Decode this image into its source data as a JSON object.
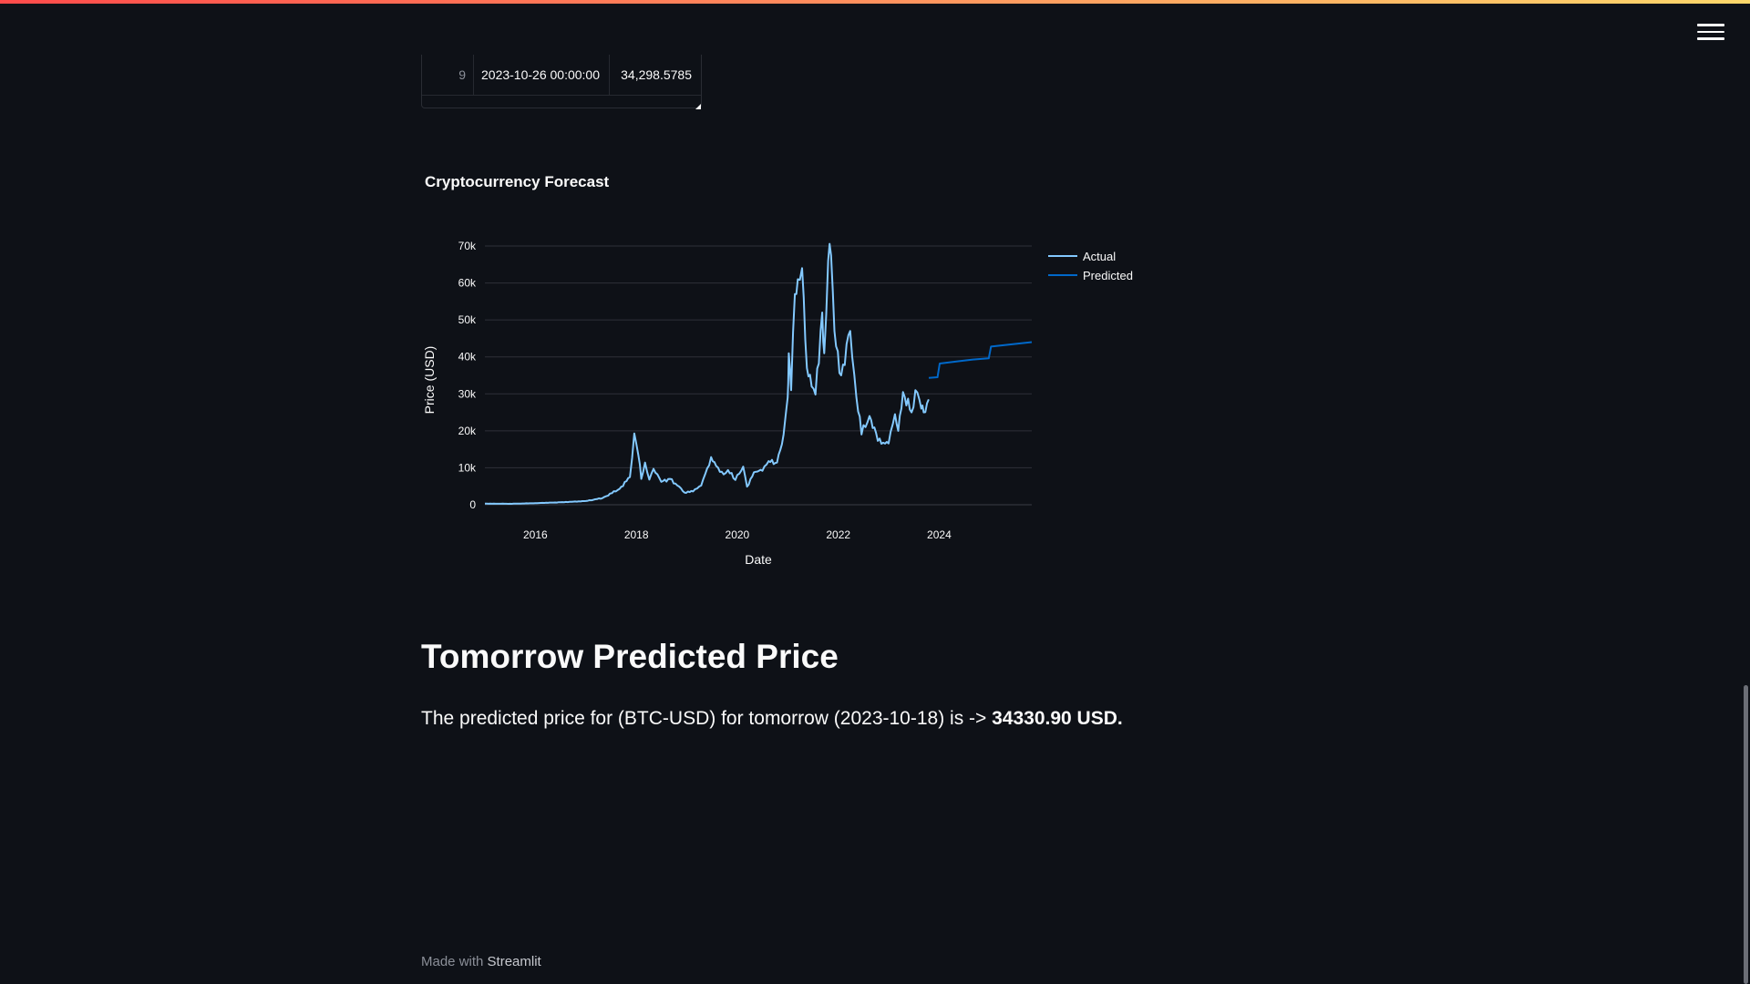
{
  "header": {
    "menu_icon": "hamburger-menu-icon"
  },
  "dataframe": {
    "visible_row": {
      "index": "9",
      "date": "2023-10-26 00:00:00",
      "value": "34,298.5785"
    }
  },
  "chart_title": "Cryptocurrency Forecast",
  "chart_data": {
    "type": "line",
    "xlabel": "Date",
    "ylabel": "Price (USD)",
    "x_ticks": [
      "2016",
      "2018",
      "2020",
      "2022",
      "2024"
    ],
    "y_ticks": [
      "0",
      "10k",
      "20k",
      "30k",
      "40k",
      "50k",
      "60k",
      "70k"
    ],
    "ylim": [
      0,
      70000
    ],
    "xlim": [
      "2015-01-01",
      "2025-11-01"
    ],
    "grid": true,
    "legend_position": "top-right",
    "series": [
      {
        "name": "Actual",
        "color": "#83c9ff",
        "points": [
          [
            "2015-01-01",
            300
          ],
          [
            "2015-07-01",
            260
          ],
          [
            "2016-01-01",
            430
          ],
          [
            "2016-07-01",
            660
          ],
          [
            "2017-01-01",
            1000
          ],
          [
            "2017-05-01",
            1800
          ],
          [
            "2017-09-01",
            4300
          ],
          [
            "2017-11-15",
            7500
          ],
          [
            "2017-12-17",
            19300
          ],
          [
            "2018-01-15",
            13500
          ],
          [
            "2018-02-06",
            7000
          ],
          [
            "2018-03-05",
            11400
          ],
          [
            "2018-04-05",
            6800
          ],
          [
            "2018-05-05",
            9700
          ],
          [
            "2018-06-30",
            6200
          ],
          [
            "2018-09-01",
            7000
          ],
          [
            "2018-11-20",
            4400
          ],
          [
            "2018-12-15",
            3300
          ],
          [
            "2019-02-15",
            3600
          ],
          [
            "2019-04-15",
            5200
          ],
          [
            "2019-06-26",
            12900
          ],
          [
            "2019-08-01",
            10500
          ],
          [
            "2019-09-25",
            8200
          ],
          [
            "2019-10-26",
            9400
          ],
          [
            "2019-12-18",
            6700
          ],
          [
            "2020-02-13",
            10300
          ],
          [
            "2020-03-12",
            4900
          ],
          [
            "2020-05-01",
            8800
          ],
          [
            "2020-07-01",
            9200
          ],
          [
            "2020-08-15",
            11800
          ],
          [
            "2020-10-15",
            11400
          ],
          [
            "2020-12-01",
            19000
          ],
          [
            "2020-12-31",
            29000
          ],
          [
            "2021-01-08",
            41000
          ],
          [
            "2021-01-25",
            31000
          ],
          [
            "2021-02-21",
            57000
          ],
          [
            "2021-03-14",
            61000
          ],
          [
            "2021-04-14",
            64000
          ],
          [
            "2021-05-19",
            37000
          ],
          [
            "2021-06-22",
            32000
          ],
          [
            "2021-07-20",
            29800
          ],
          [
            "2021-09-07",
            52000
          ],
          [
            "2021-09-21",
            41000
          ],
          [
            "2021-10-20",
            66000
          ],
          [
            "2021-11-10",
            67500
          ],
          [
            "2021-12-04",
            47000
          ],
          [
            "2022-01-22",
            35000
          ],
          [
            "2022-03-28",
            47000
          ],
          [
            "2022-05-12",
            29000
          ],
          [
            "2022-06-18",
            19000
          ],
          [
            "2022-08-15",
            24000
          ],
          [
            "2022-10-01",
            19500
          ],
          [
            "2022-11-09",
            16500
          ],
          [
            "2022-12-31",
            16600
          ],
          [
            "2023-02-15",
            24500
          ],
          [
            "2023-03-11",
            20000
          ],
          [
            "2023-04-14",
            30500
          ],
          [
            "2023-06-15",
            25000
          ],
          [
            "2023-07-13",
            31000
          ],
          [
            "2023-08-25",
            26000
          ],
          [
            "2023-09-11",
            25000
          ],
          [
            "2023-10-17",
            28500
          ]
        ]
      },
      {
        "name": "Predicted",
        "color": "#0068c9",
        "points": [
          [
            "2023-10-18",
            34300
          ],
          [
            "2023-12-20",
            34500
          ],
          [
            "2024-01-05",
            38200
          ],
          [
            "2024-06-01",
            38900
          ],
          [
            "2024-09-01",
            39300
          ],
          [
            "2024-12-25",
            39600
          ],
          [
            "2025-01-10",
            42800
          ],
          [
            "2025-11-01",
            44000
          ]
        ]
      }
    ]
  },
  "prediction": {
    "heading": "Tomorrow Predicted Price",
    "text_prefix": "The predicted price for (BTC-USD) for tomorrow (2023-10-18) is -> ",
    "value_text": "34330.90 USD."
  },
  "footer": {
    "prefix": "Made with ",
    "brand": "Streamlit"
  }
}
